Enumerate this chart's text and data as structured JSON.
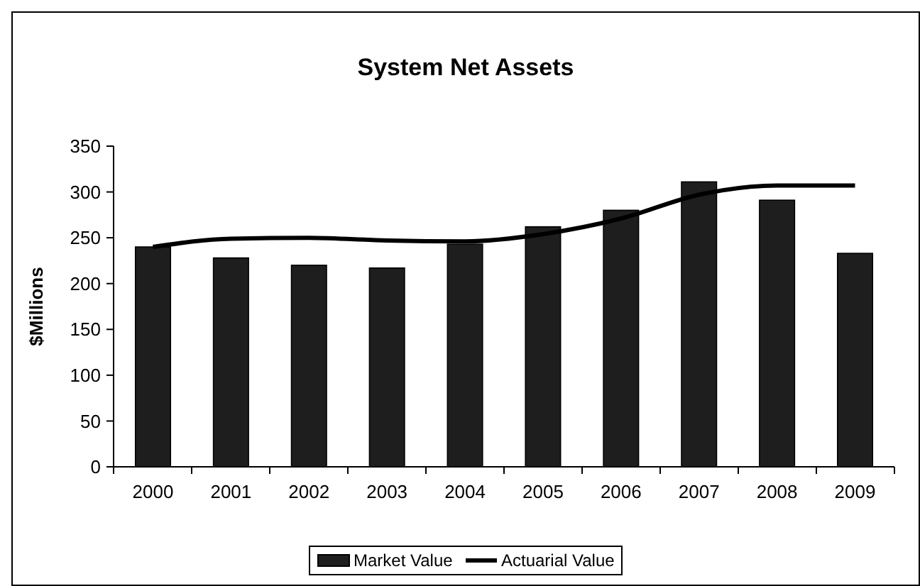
{
  "chart_data": {
    "type": "bar",
    "title": "System Net Assets",
    "ylabel": "$Millions",
    "categories": [
      "2000",
      "2001",
      "2002",
      "2003",
      "2004",
      "2005",
      "2006",
      "2007",
      "2008",
      "2009"
    ],
    "series": [
      {
        "name": "Market Value",
        "color": "#1e1e1e",
        "values": [
          240,
          228,
          220,
          217,
          243,
          262,
          280,
          311,
          291,
          233
        ]
      },
      {
        "name": "Actuarial Value",
        "type": "line",
        "color": "#000000",
        "values": [
          240,
          249,
          250,
          247,
          246,
          254,
          271,
          297,
          307,
          307
        ]
      }
    ],
    "ylim": [
      0,
      350
    ],
    "yticks": [
      0,
      50,
      100,
      150,
      200,
      250,
      300,
      350
    ],
    "grid": false,
    "legend": "bottom"
  }
}
